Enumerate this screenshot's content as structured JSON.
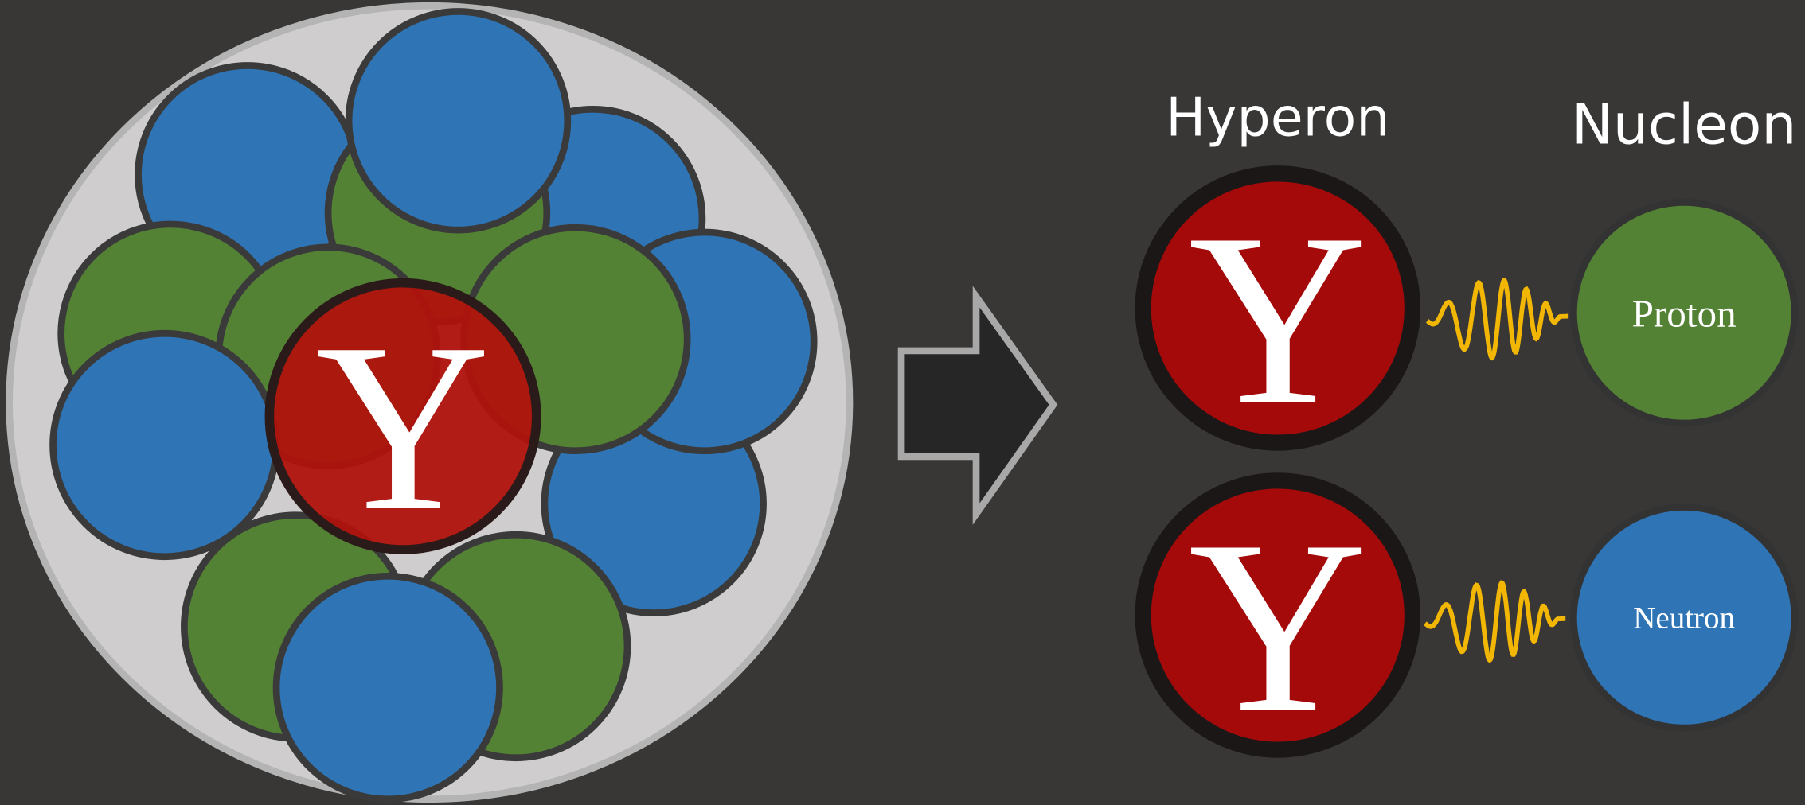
{
  "nucleus": {
    "hyperon_symbol": "Y"
  },
  "labels": {
    "hyperon": "Hyperon",
    "nucleon": "Nucleon"
  },
  "pairs": [
    {
      "hyperon_symbol": "Y",
      "nucleon": "Proton"
    },
    {
      "hyperon_symbol": "Y",
      "nucleon": "Neutron"
    }
  ]
}
